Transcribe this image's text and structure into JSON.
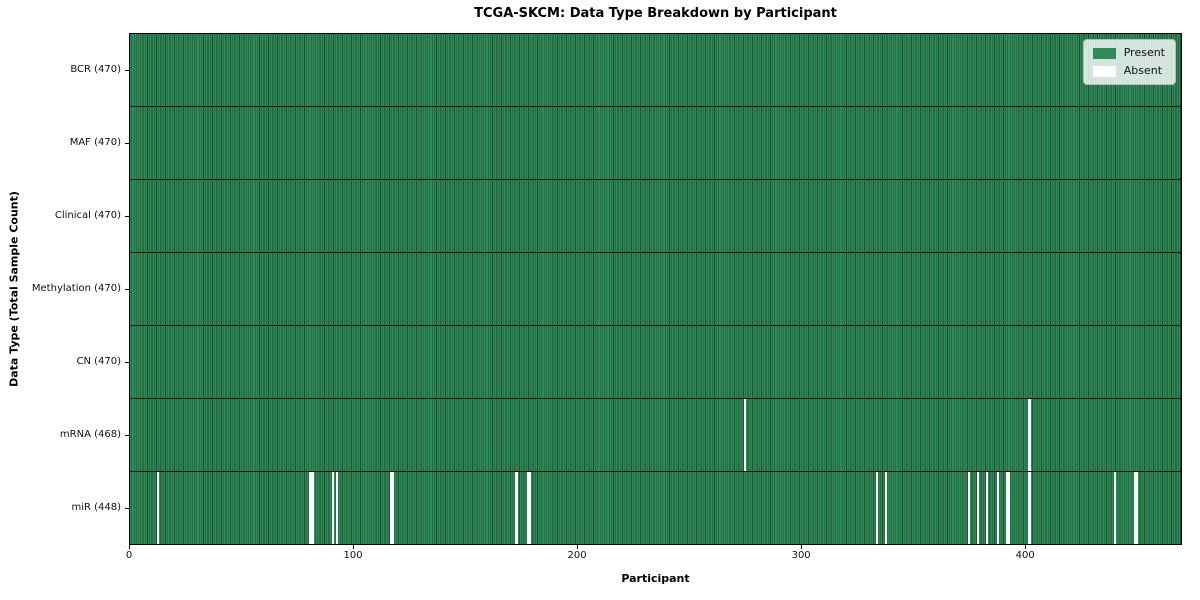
{
  "chart_data": {
    "type": "heatmap",
    "title": "TCGA-SKCM: Data Type Breakdown by Participant",
    "xlabel": "Participant",
    "ylabel": "Data Type (Total Sample Count)",
    "n_participants": 470,
    "x_ticks": [
      0,
      100,
      200,
      300,
      400
    ],
    "legend_position": "upper right",
    "grid": false,
    "legend": [
      {
        "label": "Present",
        "color": "#2e8b57"
      },
      {
        "label": "Absent",
        "color": "#ffffff"
      }
    ],
    "rows": [
      {
        "data_type": "BCR",
        "label": "BCR (470)",
        "present_count": 470,
        "absent_participants": []
      },
      {
        "data_type": "MAF",
        "label": "MAF (470)",
        "present_count": 470,
        "absent_participants": []
      },
      {
        "data_type": "Clinical",
        "label": "Clinical (470)",
        "present_count": 470,
        "absent_participants": []
      },
      {
        "data_type": "Methylation",
        "label": "Methylation (470)",
        "present_count": 470,
        "absent_participants": []
      },
      {
        "data_type": "CN",
        "label": "CN (470)",
        "present_count": 470,
        "absent_participants": []
      },
      {
        "data_type": "mRNA",
        "label": "mRNA (468)",
        "present_count": 468,
        "absent_participants": [
          274,
          401
        ]
      },
      {
        "data_type": "miR",
        "label": "miR (448)",
        "present_count": 448,
        "absent_participants": [
          12,
          80,
          81,
          90,
          92,
          116,
          117,
          172,
          177,
          178,
          333,
          337,
          374,
          378,
          382,
          387,
          391,
          392,
          401,
          439,
          448,
          449
        ]
      }
    ],
    "colors": {
      "present": "#2e8b57",
      "absent": "#ffffff",
      "cell_edge": "#1c5134",
      "row_border": "#141414",
      "spine": "#000000"
    }
  }
}
